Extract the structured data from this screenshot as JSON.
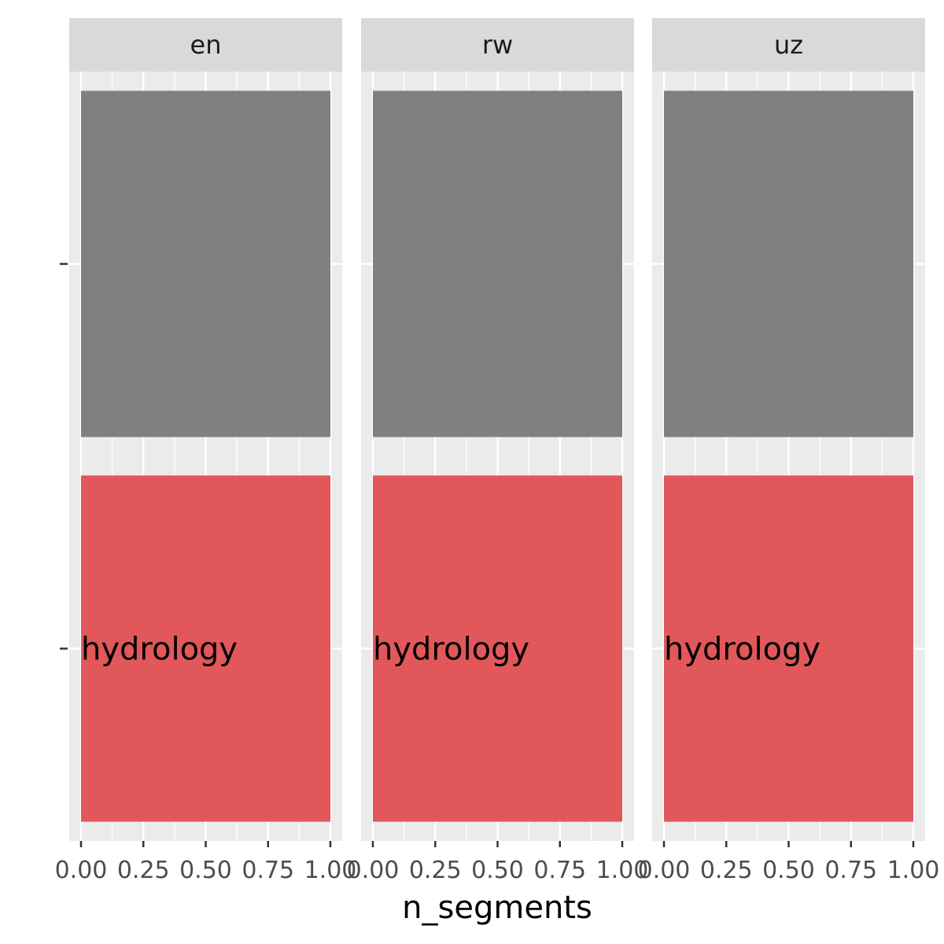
{
  "chart_data": {
    "type": "bar",
    "orientation": "horizontal",
    "facets": [
      "en",
      "rw",
      "uz"
    ],
    "categories": [
      "",
      "hydrology"
    ],
    "bars": [
      {
        "category": "",
        "label": "",
        "value": 1.0,
        "color": "#808080"
      },
      {
        "category": "hydrology",
        "label": "hydrology",
        "value": 1.0,
        "color": "#e1575a"
      }
    ],
    "xlabel": "n_segments",
    "ylabel": "",
    "xlim": [
      0,
      1
    ],
    "xticks": [
      0,
      0.25,
      0.5,
      0.75,
      1.0
    ],
    "xtick_labels": [
      "0.00",
      "0.25",
      "0.50",
      "0.75",
      "1.00"
    ],
    "grid": true,
    "legend": "none"
  },
  "colors": {
    "panel_background": "#ebebeb",
    "grid_line": "#ffffff",
    "strip_background": "#d9d9d9",
    "tick_mark": "#333333"
  }
}
